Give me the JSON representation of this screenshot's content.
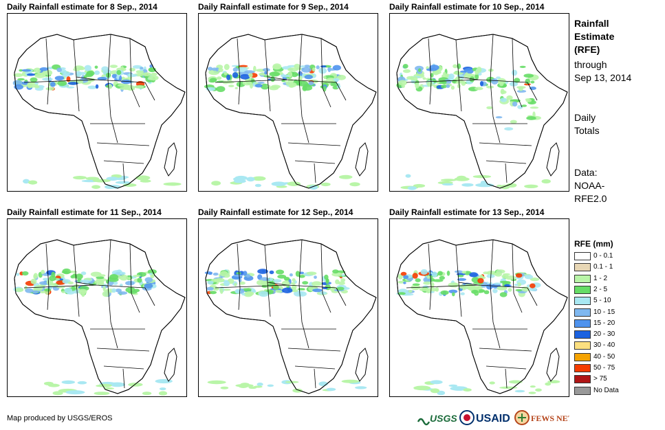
{
  "panels": [
    {
      "title": "Daily Rainfall estimate for 8 Sep., 2014"
    },
    {
      "title": "Daily Rainfall estimate for 9 Sep., 2014"
    },
    {
      "title": "Daily Rainfall estimate for 10 Sep., 2014"
    },
    {
      "title": "Daily Rainfall estimate for 11 Sep., 2014"
    },
    {
      "title": "Daily Rainfall estimate for 12 Sep., 2014"
    },
    {
      "title": "Daily Rainfall estimate for 13 Sep., 2014"
    }
  ],
  "side": {
    "title_lines": [
      "Rainfall",
      "Estimate",
      "(RFE)"
    ],
    "through_lines": [
      "through",
      "Sep 13, 2014"
    ],
    "totals_lines": [
      "Daily",
      "Totals"
    ],
    "data_lines": [
      "Data:",
      "NOAA-",
      "RFE2.0"
    ]
  },
  "legend": {
    "title": "RFE (mm)",
    "items": [
      {
        "label": "0 - 0.1",
        "color": "#ffffff"
      },
      {
        "label": "0.1 - 1",
        "color": "#e8d7b5"
      },
      {
        "label": "1 - 2",
        "color": "#b9f5a8"
      },
      {
        "label": "2 - 5",
        "color": "#66dd66"
      },
      {
        "label": "5 - 10",
        "color": "#a9e8f2"
      },
      {
        "label": "10 - 15",
        "color": "#7fb8f0"
      },
      {
        "label": "15 - 20",
        "color": "#4f93ee"
      },
      {
        "label": "20 - 30",
        "color": "#1b62e0"
      },
      {
        "label": "30 - 40",
        "color": "#fce080"
      },
      {
        "label": "40 - 50",
        "color": "#f5a300"
      },
      {
        "label": "50 - 75",
        "color": "#f53c00"
      },
      {
        "label": "> 75",
        "color": "#b01515"
      },
      {
        "label": "No Data",
        "color": "#999999"
      }
    ]
  },
  "footer": {
    "credit": "Map produced by USGS/EROS",
    "logos": [
      {
        "name": "usgs-logo",
        "text": "USGS",
        "color": "#1b6b3a"
      },
      {
        "name": "usaid-logo",
        "text": "USAID",
        "color": "#002f6c"
      },
      {
        "name": "fewsnet-logo",
        "text": "FEWS NET",
        "color": "#b5451b"
      }
    ]
  }
}
